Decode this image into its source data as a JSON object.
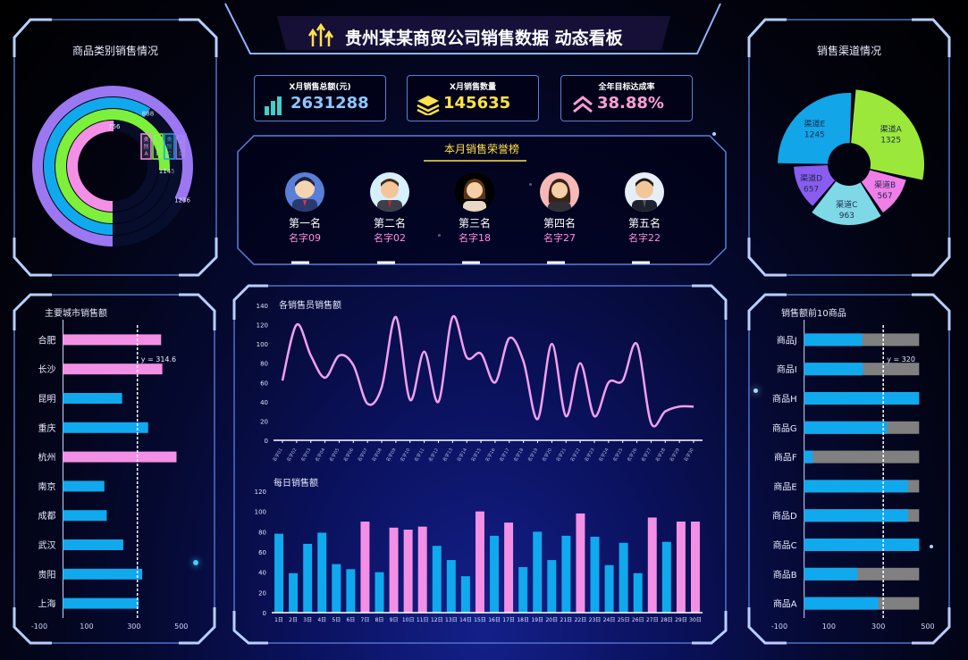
{
  "header": {
    "title": "贵州某某商贸公司销售数据 动态看板"
  },
  "kpis": [
    {
      "label": "X月销售总额(元)",
      "value": "2631288",
      "color": "#8fc6ff",
      "icon": "bar-stack-icon"
    },
    {
      "label": "X月销售数量",
      "value": "145635",
      "color": "#ffe14a",
      "icon": "layers-icon"
    },
    {
      "label": "全年目标达成率",
      "value": "38.88%",
      "color": "#ff9ed8",
      "icon": "chevron-up-icon"
    }
  ],
  "honor": {
    "title": "本月销售荣誉榜",
    "people": [
      {
        "rank": "第一名",
        "name": "名字09"
      },
      {
        "rank": "第二名",
        "name": "名字02"
      },
      {
        "rank": "第三名",
        "name": "名字18"
      },
      {
        "rank": "第四名",
        "name": "名字27"
      },
      {
        "rank": "第五名",
        "name": "名字22"
      }
    ]
  },
  "panels": {
    "category": "商品类别销售情况",
    "channel": "销售渠道情况",
    "city": "主要城市销售额",
    "salesperson": "各销售员销售额",
    "daily": "每日销售额",
    "top10": "销售额前10商品"
  },
  "chart_data": [
    {
      "type": "bar",
      "name": "category-radial",
      "legend": [
        "类别A",
        "类别B",
        "类别C",
        "类别D"
      ],
      "legend_labels": [
        "类\n别\nA",
        "类\n别\nB",
        "类\n别\nC",
        "类\n别\nD"
      ],
      "values": [
        756,
        1145,
        888,
        1236
      ],
      "colors": [
        "#f48fe6",
        "#7cf03b",
        "#10a9ee",
        "#9b77f2"
      ],
      "data_labels": [
        "756",
        "1145",
        "888",
        "1236"
      ]
    },
    {
      "type": "pie",
      "name": "channel-donut",
      "labels": [
        "渠道A",
        "渠道B",
        "渠道C",
        "渠道D",
        "渠道E"
      ],
      "values": [
        1325,
        567,
        963,
        657,
        1245
      ],
      "colors": [
        "#9be83a",
        "#f07ee8",
        "#7fd8e6",
        "#8a5cf0",
        "#12a5e8"
      ]
    },
    {
      "type": "bar",
      "name": "city-sales",
      "orientation": "horizontal",
      "categories": [
        "合肥",
        "长沙",
        "昆明",
        "重庆",
        "杭州",
        "南京",
        "成都",
        "武汉",
        "贵阳",
        "上海"
      ],
      "values": [
        415,
        420,
        250,
        360,
        480,
        175,
        185,
        255,
        335,
        320
      ],
      "highlight": [
        true,
        true,
        false,
        false,
        true,
        false,
        false,
        false,
        false,
        false
      ],
      "xlim": [
        -100,
        550
      ],
      "xticks": [
        -100,
        100,
        300,
        500
      ],
      "reference_line": {
        "value": 314.6,
        "label": "y = 314.6"
      },
      "colors": {
        "high": "#f48fe6",
        "normal": "#10a9ee"
      }
    },
    {
      "type": "line",
      "name": "salesperson-sales",
      "x": [
        "名字01",
        "名字02",
        "名字03",
        "名字04",
        "名字05",
        "名字06",
        "名字07",
        "名字08",
        "名字09",
        "名字10",
        "名字11",
        "名字12",
        "名字13",
        "名字14",
        "名字15",
        "名字16",
        "名字17",
        "名字18",
        "名字19",
        "名字20",
        "名字21",
        "名字22",
        "名字23",
        "名字24",
        "名字25",
        "名字26",
        "名字27",
        "名字28",
        "名字29",
        "名字30"
      ],
      "values": [
        62,
        120,
        88,
        65,
        88,
        78,
        38,
        55,
        128,
        42,
        92,
        40,
        128,
        86,
        90,
        60,
        106,
        82,
        22,
        100,
        25,
        80,
        25,
        60,
        62,
        100,
        18,
        30,
        35,
        35
      ],
      "ylim": [
        0,
        140
      ],
      "yticks": [
        0,
        20,
        40,
        60,
        80,
        100,
        120,
        140
      ],
      "color": "#f0a0f0"
    },
    {
      "type": "bar",
      "name": "daily-sales",
      "categories": [
        "1日",
        "2日",
        "3日",
        "4日",
        "5日",
        "6日",
        "7日",
        "8日",
        "9日",
        "10日",
        "11日",
        "12日",
        "13日",
        "14日",
        "15日",
        "16日",
        "17日",
        "18日",
        "19日",
        "20日",
        "21日",
        "22日",
        "23日",
        "24日",
        "25日",
        "26日",
        "27日",
        "28日",
        "29日",
        "30日"
      ],
      "values": [
        78,
        39,
        68,
        79,
        48,
        43,
        90,
        40,
        84,
        82,
        85,
        66,
        52,
        36,
        100,
        76,
        89,
        45,
        80,
        52,
        76,
        98,
        75,
        47,
        69,
        39,
        94,
        70,
        90,
        90
      ],
      "highlight": [
        false,
        false,
        false,
        false,
        false,
        false,
        true,
        false,
        true,
        true,
        true,
        false,
        false,
        false,
        true,
        false,
        true,
        false,
        false,
        false,
        false,
        true,
        false,
        false,
        false,
        false,
        true,
        false,
        true,
        true
      ],
      "ylim": [
        0,
        120
      ],
      "yticks": [
        0,
        20,
        40,
        60,
        80,
        100,
        120
      ],
      "colors": {
        "high": "#f48fe6",
        "normal": "#10a9ee"
      }
    },
    {
      "type": "bar",
      "name": "top10-products",
      "orientation": "horizontal",
      "categories": [
        "商品J",
        "商品I",
        "商品H",
        "商品G",
        "商品F",
        "商品E",
        "商品D",
        "商品C",
        "商品B",
        "商品A"
      ],
      "values": [
        235,
        238,
        465,
        335,
        35,
        420,
        420,
        465,
        215,
        300
      ],
      "total": 465,
      "xlim": [
        -100,
        500
      ],
      "xticks": [
        -100,
        100,
        300,
        500
      ],
      "reference_line": {
        "value": 320,
        "label": "y = 320"
      },
      "colors": {
        "bar": "#10a9ee",
        "rest": "#808080"
      }
    }
  ]
}
